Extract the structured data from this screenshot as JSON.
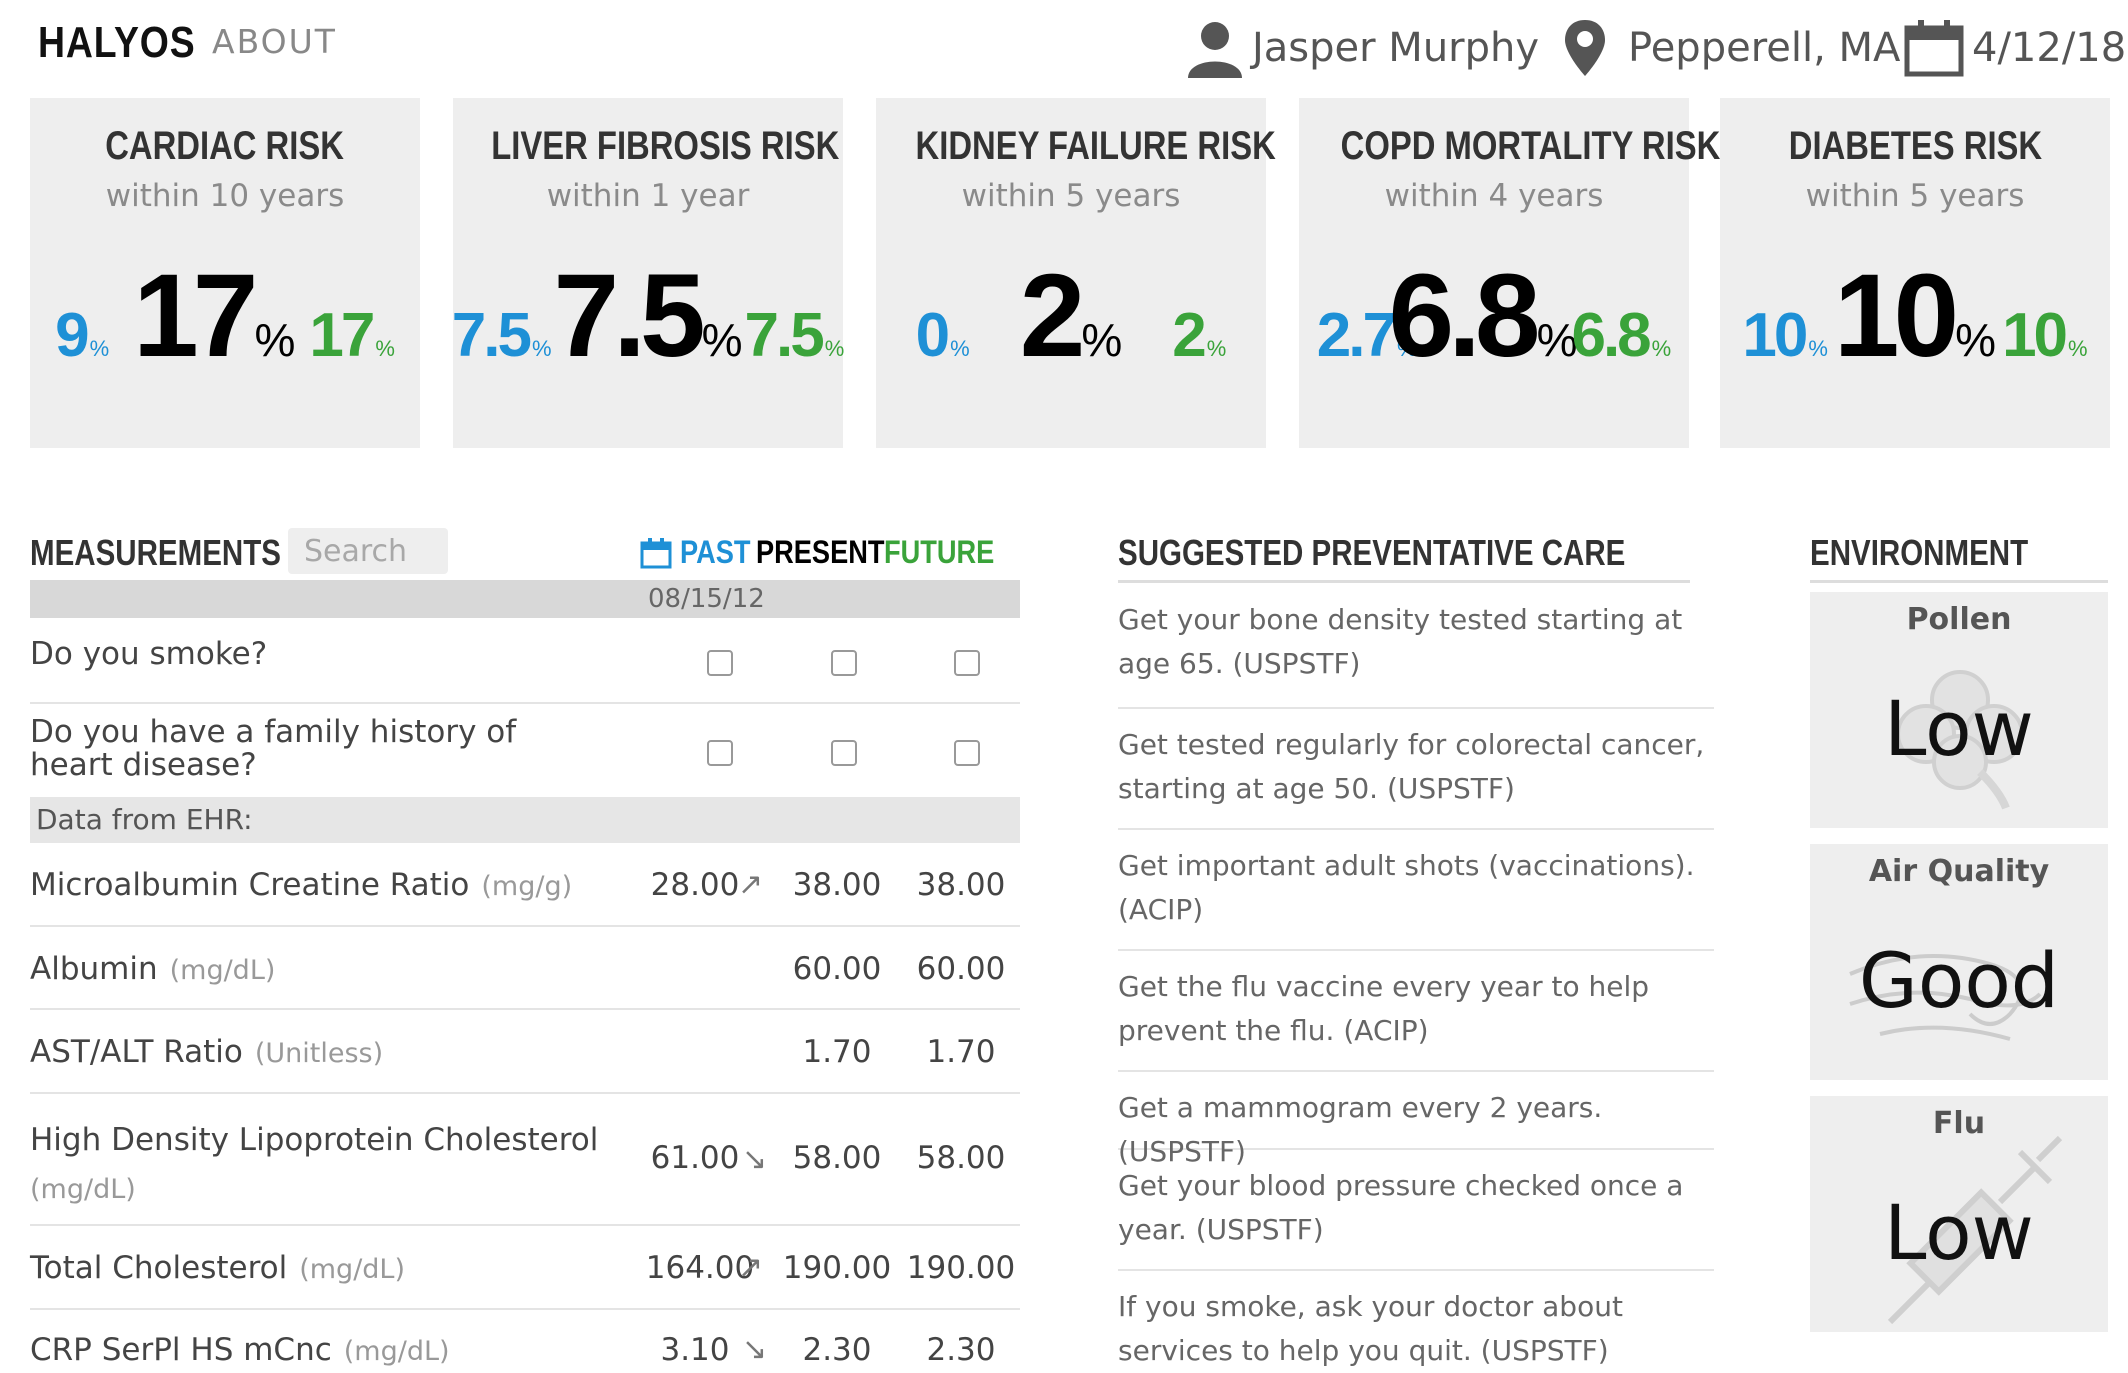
{
  "header": {
    "brand": "HALYOS",
    "about": "ABOUT",
    "user": "Jasper Murphy",
    "location": "Pepperell, MA",
    "date": "4/12/18"
  },
  "risks": [
    {
      "title": "CARDIAC RISK",
      "window": "within 10 years",
      "past": "9",
      "present": "17",
      "future": "17",
      "unit": "%"
    },
    {
      "title": "LIVER FIBROSIS RISK",
      "window": "within 1 year",
      "past": "7.5",
      "present": "7.5",
      "future": "7.5",
      "unit": "%"
    },
    {
      "title": "KIDNEY FAILURE RISK",
      "window": "within 5 years",
      "past": "0",
      "present": "2",
      "future": "2",
      "unit": "%"
    },
    {
      "title": "COPD MORTALITY RISK",
      "window": "within 4 years",
      "past": "2.7",
      "present": "6.8",
      "future": "6.8",
      "unit": "%"
    },
    {
      "title": "DIABETES RISK",
      "window": "within 5 years",
      "past": "10",
      "present": "10",
      "future": "10",
      "unit": "%"
    }
  ],
  "measurements": {
    "heading": "MEASUREMENTS",
    "search_placeholder": "Search",
    "toggle_past": "PAST",
    "toggle_present": "PRESENT",
    "toggle_future": "FUTURE",
    "past_date": "08/15/12",
    "questions": [
      "Do you smoke?",
      "Do you have a family history of heart disease?"
    ],
    "ehr_label": "Data from EHR:",
    "rows": [
      {
        "name": "Microalbumin Creatine Ratio",
        "unit": "(mg/g)",
        "past": "28.00",
        "trend": "↗",
        "present": "38.00",
        "future": "38.00"
      },
      {
        "name": "Albumin",
        "unit": "(mg/dL)",
        "past": "",
        "trend": "",
        "present": "60.00",
        "future": "60.00"
      },
      {
        "name": "AST/ALT Ratio",
        "unit": "(Unitless)",
        "past": "",
        "trend": "",
        "present": "1.70",
        "future": "1.70"
      },
      {
        "name": "High Density Lipoprotein Cholesterol",
        "unit": "(mg/dL)",
        "past": "61.00",
        "trend": "↘",
        "present": "58.00",
        "future": "58.00"
      },
      {
        "name": "Total Cholesterol",
        "unit": "(mg/dL)",
        "past": "164.00",
        "trend": "↗",
        "present": "190.00",
        "future": "190.00"
      },
      {
        "name": "CRP SerPl HS mCnc",
        "unit": "(mg/dL)",
        "past": "3.10",
        "trend": "↘",
        "present": "2.30",
        "future": "2.30"
      }
    ]
  },
  "preventative": {
    "heading": "SUGGESTED PREVENTATIVE CARE",
    "items": [
      "Get your bone density tested starting at age 65. (USPSTF)",
      "Get tested regularly for colorectal cancer, starting at age 50. (USPSTF)",
      "Get important adult shots (vaccinations). (ACIP)",
      "Get the flu vaccine every year to help prevent the flu. (ACIP)",
      "Get a mammogram every 2 years. (USPSTF)",
      "Get your blood pressure checked once a year. (USPSTF)",
      "If you smoke, ask your doctor about services to help you quit. (USPSTF)"
    ]
  },
  "environment": {
    "heading": "ENVIRONMENT",
    "cards": [
      {
        "title": "Pollen",
        "value": "Low",
        "icon": "clover-icon"
      },
      {
        "title": "Air Quality",
        "value": "Good",
        "icon": "wind-icon"
      },
      {
        "title": "Flu",
        "value": "Low",
        "icon": "syringe-icon"
      }
    ]
  },
  "colors": {
    "past": "#1e90d6",
    "present": "#000000",
    "future": "#3aa33a",
    "card_bg": "#eeeeee"
  }
}
